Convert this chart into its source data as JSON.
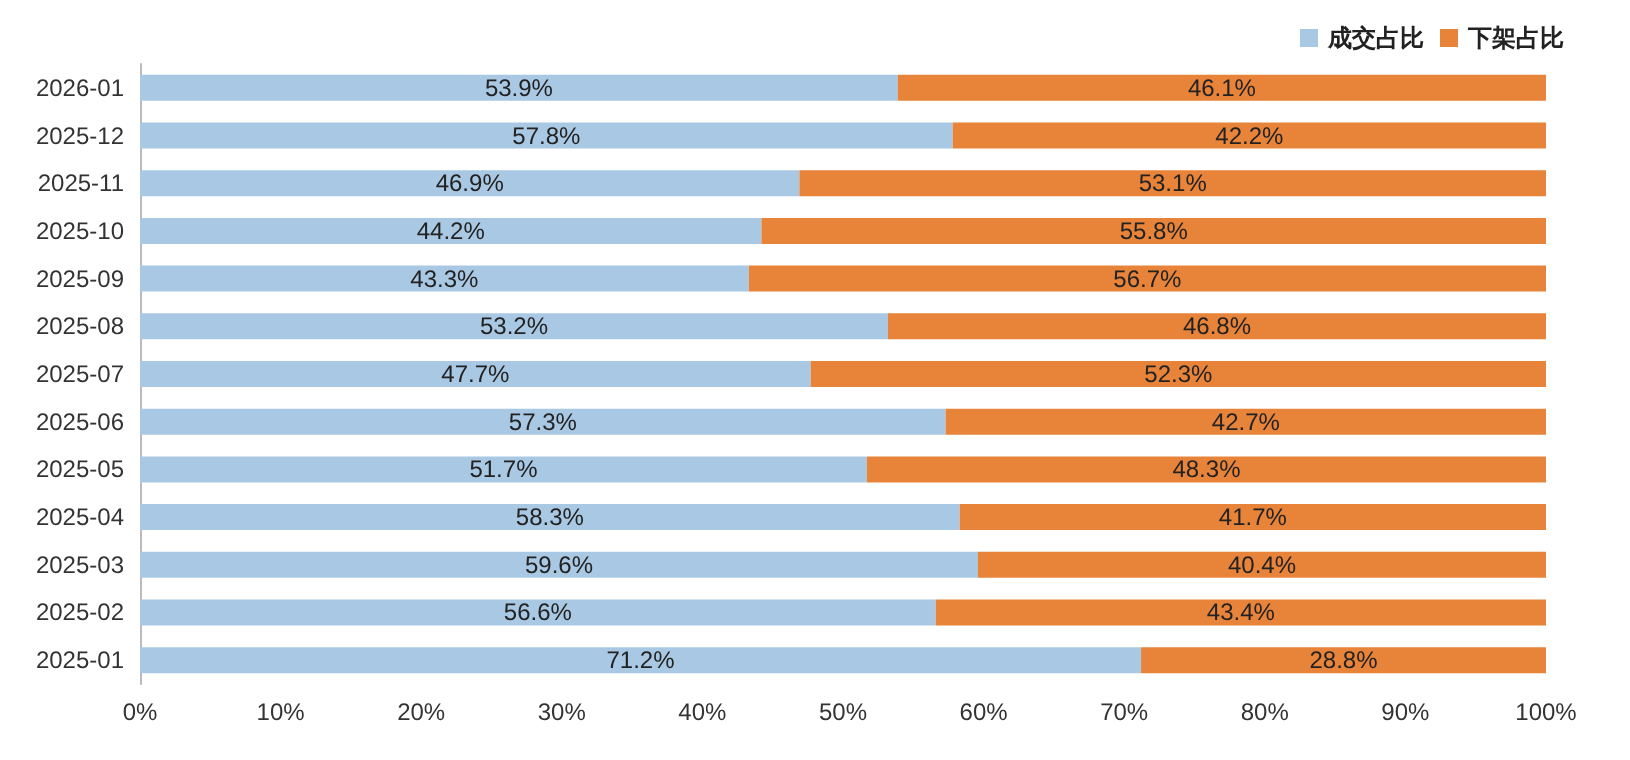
{
  "chart_data": {
    "type": "bar",
    "orientation": "horizontal",
    "stacked": true,
    "categories": [
      "2026-01",
      "2025-12",
      "2025-11",
      "2025-10",
      "2025-09",
      "2025-08",
      "2025-07",
      "2025-06",
      "2025-05",
      "2025-04",
      "2025-03",
      "2025-02",
      "2025-01"
    ],
    "series": [
      {
        "name": "成交占比",
        "color": "#a9c8e3",
        "values": [
          53.9,
          57.8,
          46.9,
          44.2,
          43.3,
          53.2,
          47.7,
          57.3,
          51.7,
          58.3,
          59.6,
          56.6,
          71.2
        ],
        "value_labels": [
          "53.9%",
          "57.8%",
          "46.9%",
          "44.2%",
          "43.3%",
          "53.2%",
          "47.7%",
          "57.3%",
          "51.7%",
          "58.3%",
          "59.6%",
          "56.6%",
          "71.2%"
        ]
      },
      {
        "name": "下架占比",
        "color": "#e8833a",
        "values": [
          46.1,
          42.2,
          53.1,
          55.8,
          56.7,
          46.8,
          52.3,
          42.7,
          48.3,
          41.7,
          40.4,
          43.4,
          28.8
        ],
        "value_labels": [
          "46.1%",
          "42.2%",
          "53.1%",
          "55.8%",
          "56.7%",
          "46.8%",
          "52.3%",
          "42.7%",
          "48.3%",
          "41.7%",
          "40.4%",
          "43.4%",
          "28.8%"
        ]
      }
    ],
    "xlim": [
      0,
      100
    ],
    "xticks": [
      {
        "value": 0,
        "label": "0%"
      },
      {
        "value": 10,
        "label": "10%"
      },
      {
        "value": 20,
        "label": "20%"
      },
      {
        "value": 30,
        "label": "30%"
      },
      {
        "value": 40,
        "label": "40%"
      },
      {
        "value": 50,
        "label": "50%"
      },
      {
        "value": 60,
        "label": "60%"
      },
      {
        "value": 70,
        "label": "70%"
      },
      {
        "value": 80,
        "label": "80%"
      },
      {
        "value": 90,
        "label": "90%"
      },
      {
        "value": 100,
        "label": "100%"
      }
    ],
    "grid": false,
    "legend": "top right"
  }
}
